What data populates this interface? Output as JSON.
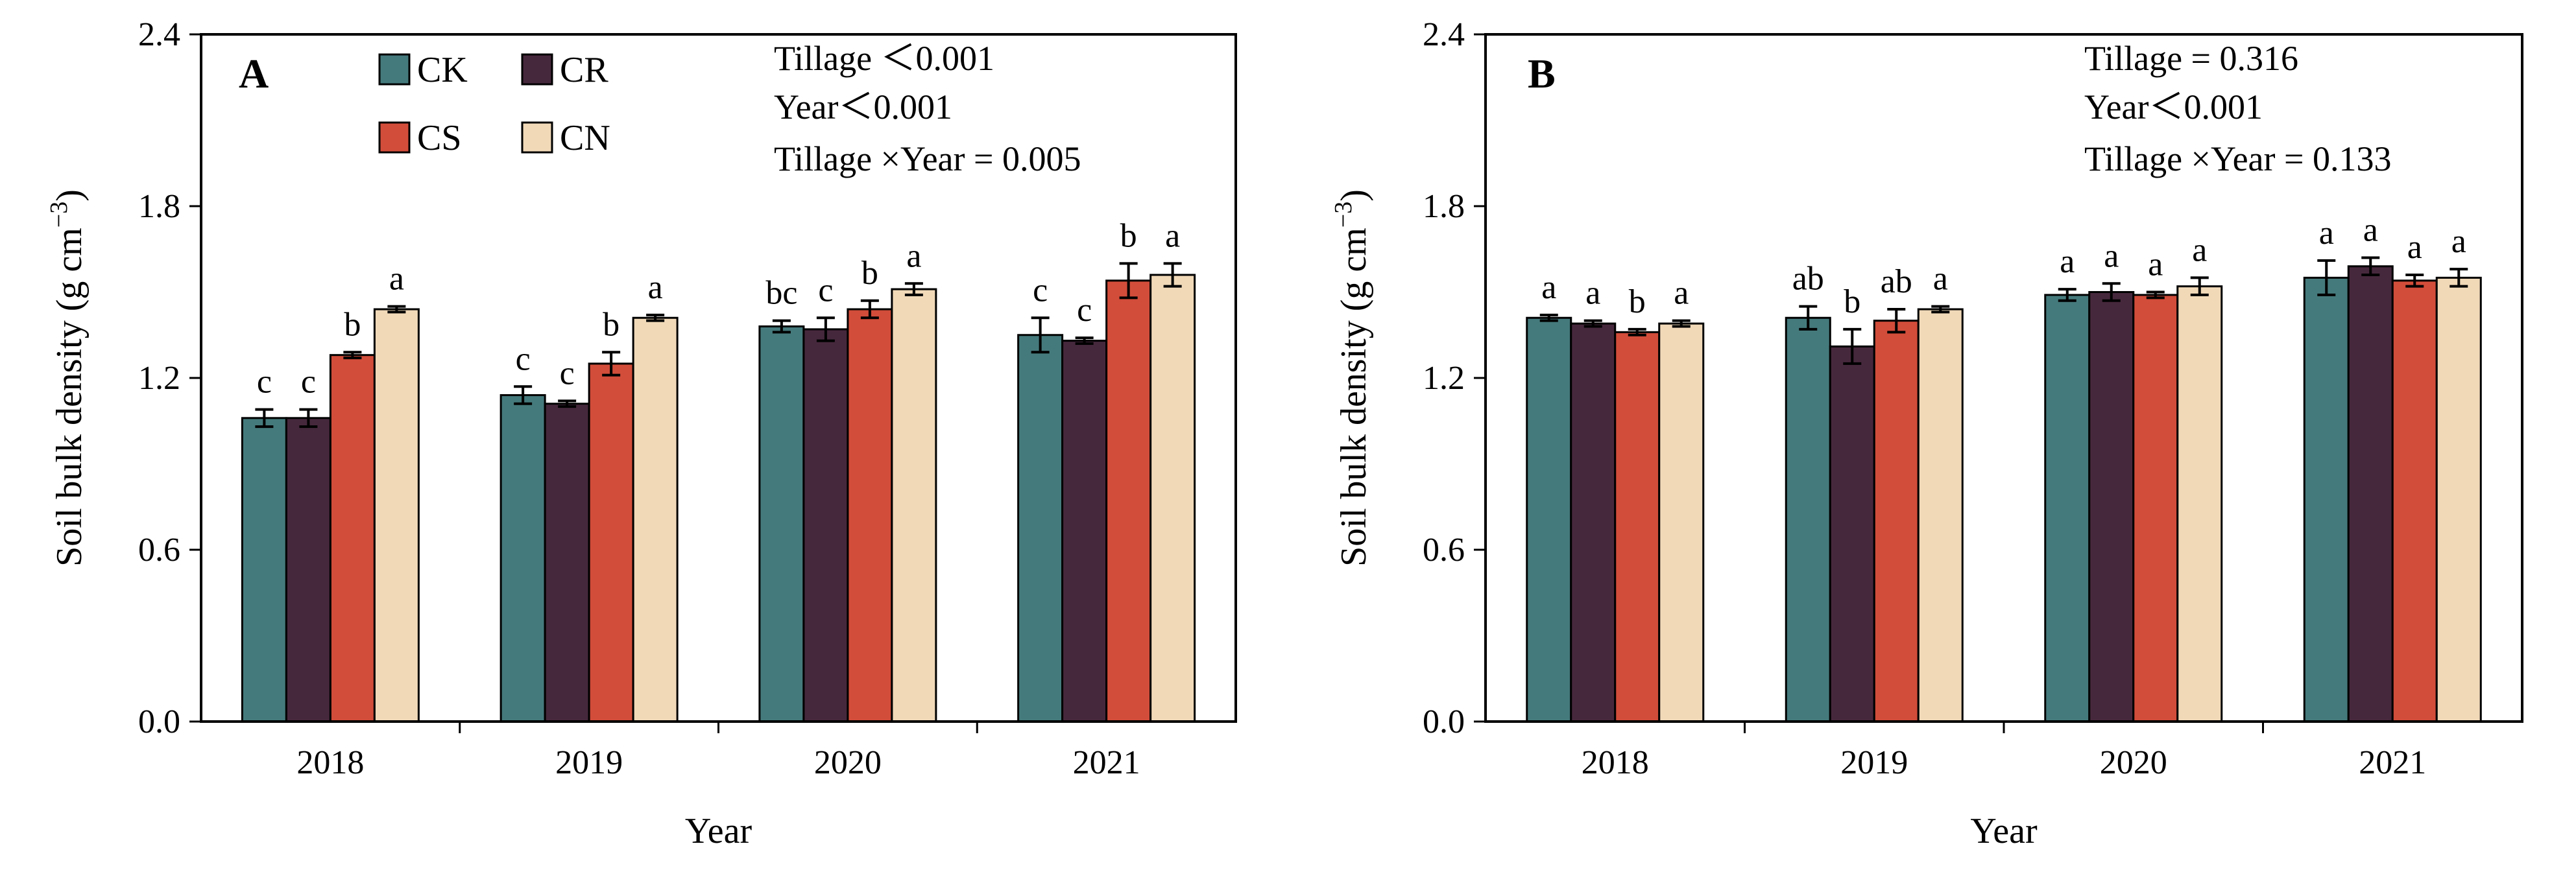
{
  "colors": {
    "CK": "#457a7c",
    "CR": "#46283c",
    "CS": "#d24d3a",
    "CN": "#f1d9b8",
    "axis": "#000000"
  },
  "legend": [
    "CK",
    "CR",
    "CS",
    "CN"
  ],
  "chart_data": [
    {
      "type": "bar",
      "panel": "A",
      "categories": [
        "2018",
        "2019",
        "2020",
        "2021"
      ],
      "xlabel": "Year",
      "ylabel_main": "Soil bulk density (g cm",
      "ylabel_sup": "−3",
      "ylabel_close": ")",
      "ylim": [
        0,
        2.4
      ],
      "yticks": [
        "0.0",
        "0.6",
        "1.2",
        "1.8",
        "2.4"
      ],
      "series": [
        {
          "name": "CK",
          "values": [
            1.06,
            1.14,
            1.38,
            1.35
          ],
          "errors": [
            0.03,
            0.03,
            0.02,
            0.06
          ],
          "letters": [
            "c",
            "c",
            "bc",
            "c"
          ]
        },
        {
          "name": "CR",
          "values": [
            1.06,
            1.11,
            1.37,
            1.33
          ],
          "errors": [
            0.03,
            0.01,
            0.04,
            0.01
          ],
          "letters": [
            "c",
            "c",
            "c",
            "c"
          ]
        },
        {
          "name": "CS",
          "values": [
            1.28,
            1.25,
            1.44,
            1.54
          ],
          "errors": [
            0.01,
            0.04,
            0.03,
            0.06
          ],
          "letters": [
            "b",
            "b",
            "b",
            "b"
          ]
        },
        {
          "name": "CN",
          "values": [
            1.44,
            1.41,
            1.51,
            1.56
          ],
          "errors": [
            0.01,
            0.01,
            0.02,
            0.04
          ],
          "letters": [
            "a",
            "a",
            "a",
            "a"
          ]
        }
      ],
      "stats": [
        "Tillage ＜0.001",
        "Year＜0.001",
        "Tillage ×Year = 0.005"
      ]
    },
    {
      "type": "bar",
      "panel": "B",
      "categories": [
        "2018",
        "2019",
        "2020",
        "2021"
      ],
      "xlabel": "Year",
      "ylabel_main": "Soil bulk density (g cm",
      "ylabel_sup": "−3",
      "ylabel_close": ")",
      "ylim": [
        0,
        2.4
      ],
      "yticks": [
        "0.0",
        "0.6",
        "1.2",
        "1.8",
        "2.4"
      ],
      "series": [
        {
          "name": "CK",
          "values": [
            1.41,
            1.41,
            1.49,
            1.55
          ],
          "errors": [
            0.01,
            0.04,
            0.02,
            0.06
          ],
          "letters": [
            "a",
            "ab",
            "a",
            "a"
          ]
        },
        {
          "name": "CR",
          "values": [
            1.39,
            1.31,
            1.5,
            1.59
          ],
          "errors": [
            0.01,
            0.06,
            0.03,
            0.03
          ],
          "letters": [
            "a",
            "b",
            "a",
            "a"
          ]
        },
        {
          "name": "CS",
          "values": [
            1.36,
            1.4,
            1.49,
            1.54
          ],
          "errors": [
            0.01,
            0.04,
            0.01,
            0.02
          ],
          "letters": [
            "b",
            "ab",
            "a",
            "a"
          ]
        },
        {
          "name": "CN",
          "values": [
            1.39,
            1.44,
            1.52,
            1.55
          ],
          "errors": [
            0.01,
            0.01,
            0.03,
            0.03
          ],
          "letters": [
            "a",
            "a",
            "a",
            "a"
          ]
        }
      ],
      "stats": [
        "Tillage  = 0.316",
        "Year＜0.001",
        "Tillage  ×Year = 0.133"
      ]
    }
  ]
}
